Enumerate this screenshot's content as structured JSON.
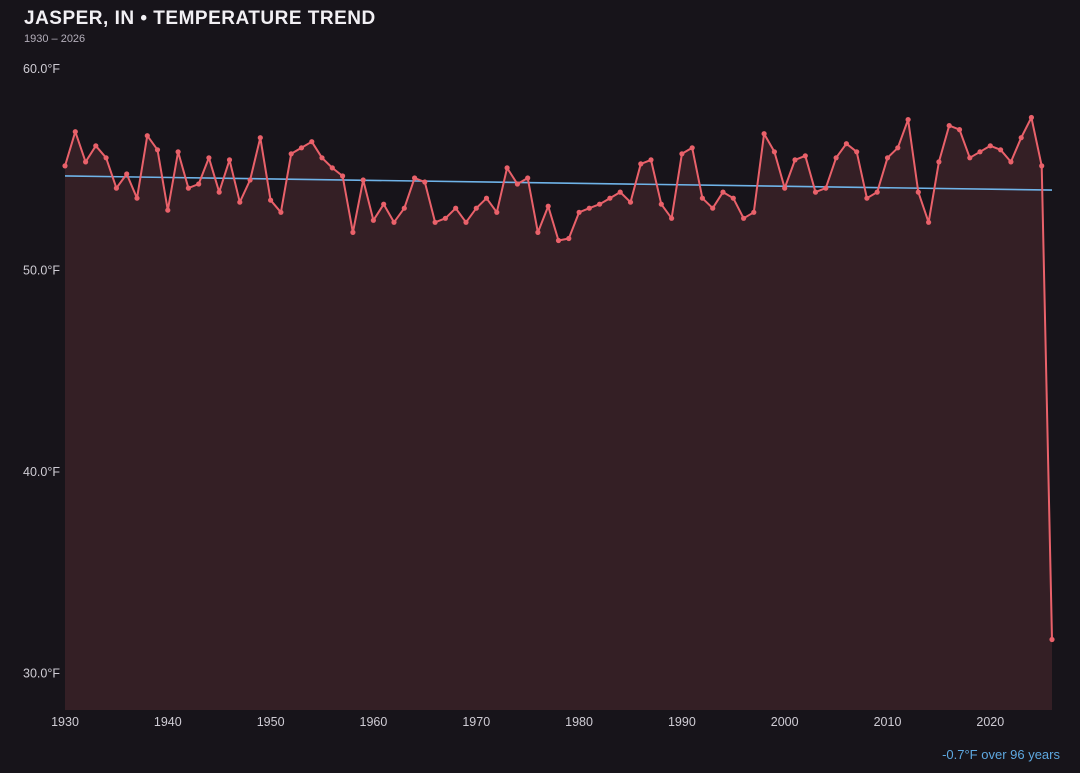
{
  "header": {
    "title": "JASPER, IN • TEMPERATURE TREND",
    "subtitle": "1930 – 2026"
  },
  "footer": {
    "trend_note": "-0.7°F over 96 years"
  },
  "chart_data": {
    "type": "line",
    "title": "JASPER, IN • TEMPERATURE TREND",
    "subtitle": "1930 – 2026",
    "xlabel": "",
    "ylabel": "",
    "x_start_year": 1930,
    "x_end_year": 2026,
    "values": [
      55.2,
      56.9,
      55.4,
      56.2,
      55.6,
      54.1,
      54.8,
      53.6,
      56.7,
      56.0,
      53.0,
      55.9,
      54.1,
      54.3,
      55.6,
      53.9,
      55.5,
      53.4,
      54.5,
      56.6,
      53.5,
      52.9,
      55.8,
      56.1,
      56.4,
      55.6,
      55.1,
      54.7,
      51.9,
      54.5,
      52.5,
      53.3,
      52.4,
      53.1,
      54.6,
      54.4,
      52.4,
      52.6,
      53.1,
      52.4,
      53.1,
      53.6,
      52.9,
      55.1,
      54.3,
      54.6,
      51.9,
      53.2,
      51.5,
      51.6,
      52.9,
      53.1,
      53.3,
      53.6,
      53.9,
      53.4,
      55.3,
      55.5,
      53.3,
      52.6,
      55.8,
      56.1,
      53.6,
      53.1,
      53.9,
      53.6,
      52.6,
      52.9,
      56.8,
      55.9,
      54.1,
      55.5,
      55.7,
      53.9,
      54.1,
      55.6,
      56.3,
      55.9,
      53.6,
      53.9,
      55.6,
      56.1,
      57.5,
      53.9,
      52.4,
      55.4,
      57.2,
      57.0,
      55.6,
      55.9,
      56.2,
      56.0,
      55.4,
      56.6,
      57.6,
      55.2,
      31.7
    ],
    "trend": {
      "start_value": 54.7,
      "end_value": 54.0,
      "change_label": "-0.7°F over 96 years"
    },
    "y_ticks": [
      {
        "value": 60,
        "label": "60.0°F"
      },
      {
        "value": 50,
        "label": "50.0°F"
      },
      {
        "value": 40,
        "label": "40.0°F"
      },
      {
        "value": 30,
        "label": "30.0°F"
      }
    ],
    "x_ticks": [
      1930,
      1940,
      1950,
      1960,
      1970,
      1980,
      1990,
      2000,
      2010,
      2020
    ],
    "ylim": [
      28.2,
      61.2
    ],
    "grid": false,
    "legend": false,
    "colors": {
      "background": "#17141a",
      "line": "#e9616a",
      "fill": "rgba(233,97,106,0.14)",
      "point": "#e9616a",
      "trend_line": "#6fb3e8",
      "axis_text": "#cfccd4",
      "title_text": "#f2f0f4",
      "annotation_text": "#5ea8e0"
    }
  }
}
